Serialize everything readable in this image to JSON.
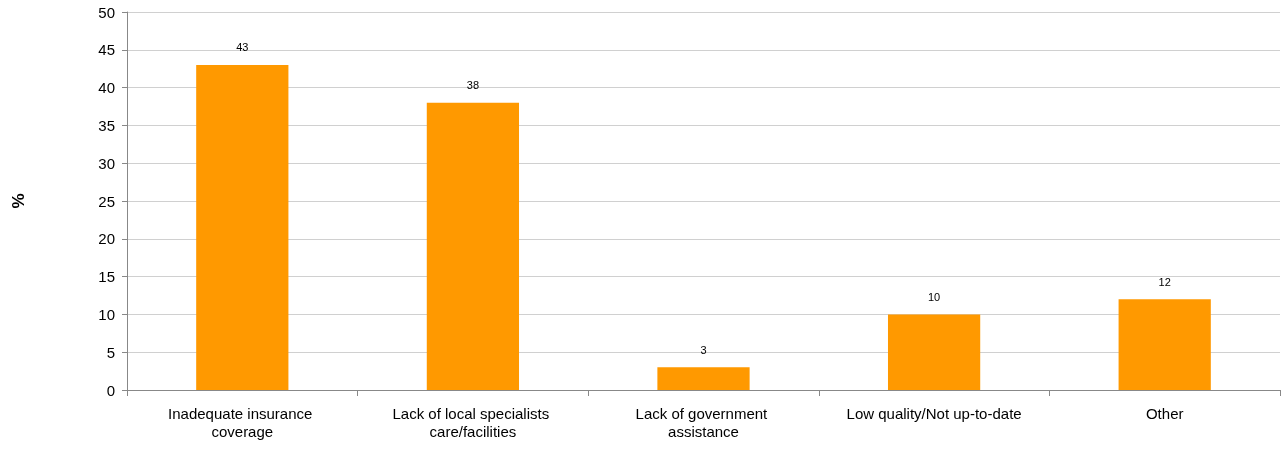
{
  "chart_data": {
    "type": "bar",
    "ylabel": "%",
    "categories": [
      "Inadequate insurance coverage",
      "Lack of local specialists care/facilities",
      "Lack of government assistance",
      "Low quality/Not up-to-date",
      "Other"
    ],
    "values": [
      43,
      38,
      3,
      10,
      12
    ],
    "color": "#ff9900",
    "ylim": [
      0,
      50
    ],
    "yticks": [
      0,
      5,
      10,
      15,
      20,
      25,
      30,
      35,
      40,
      45,
      50
    ],
    "grid": "y",
    "data_labels": true
  }
}
